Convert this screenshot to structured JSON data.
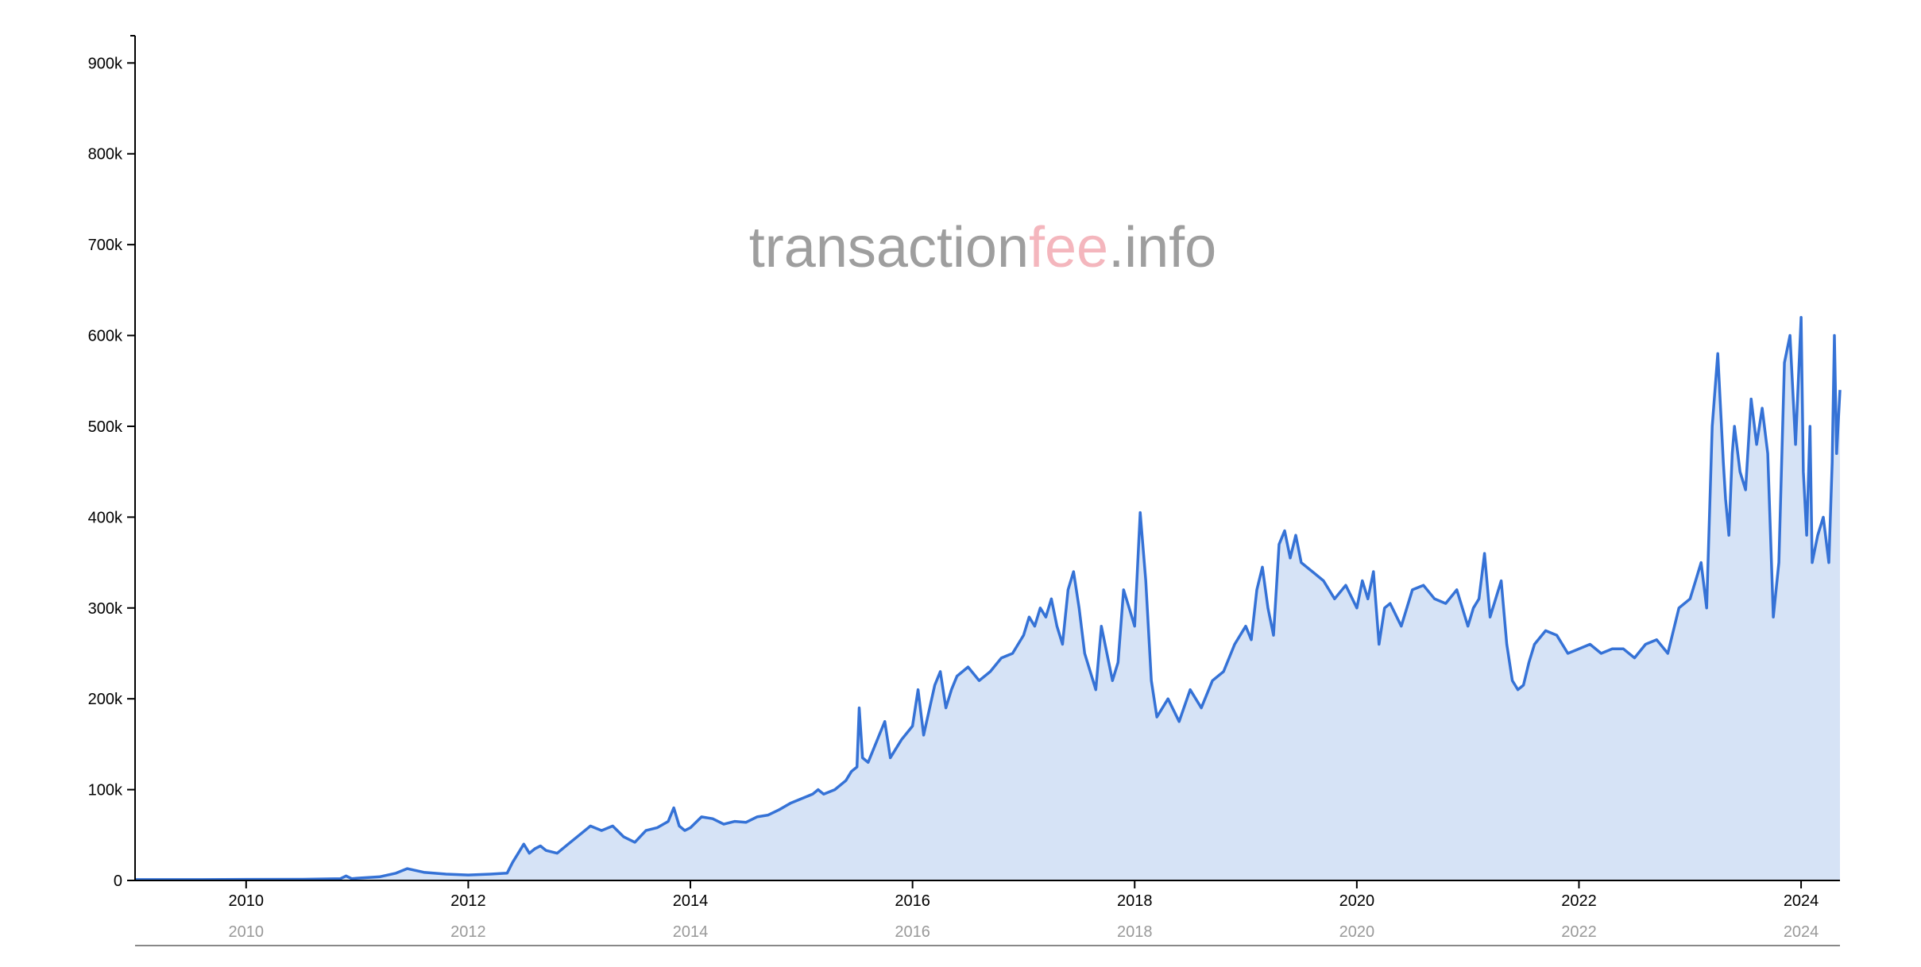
{
  "watermark": {
    "part1": "transaction",
    "part2": "fee",
    "part3": ".info",
    "color_main": "#9e9e9e",
    "color_accent": "#f4b6bd"
  },
  "colors": {
    "line": "#3572d6",
    "area": "#d6e3f6",
    "axis": "#000000",
    "nav_axis": "#888888"
  },
  "chart_data": {
    "type": "area",
    "title": "",
    "xlabel": "",
    "ylabel": "",
    "xlim": [
      2009.0,
      2024.35
    ],
    "ylim": [
      0,
      930000
    ],
    "y_ticks": [
      0,
      100000,
      200000,
      300000,
      400000,
      500000,
      600000,
      700000,
      800000,
      900000
    ],
    "y_tick_labels": [
      "0",
      "100k",
      "200k",
      "300k",
      "400k",
      "500k",
      "600k",
      "700k",
      "800k",
      "900k"
    ],
    "x_ticks": [
      2010,
      2012,
      2014,
      2016,
      2018,
      2020,
      2022,
      2024
    ],
    "x_tick_labels": [
      "2010",
      "2012",
      "2014",
      "2016",
      "2018",
      "2020",
      "2022",
      "2024"
    ],
    "navigator_labels": [
      "2010",
      "2012",
      "2014",
      "2016",
      "2018",
      "2020",
      "2022",
      "2024"
    ],
    "grid": false,
    "series": [
      {
        "x": [
          2009.0,
          2009.5,
          2010.0,
          2010.5,
          2010.85,
          2010.9,
          2010.95,
          2011.0,
          2011.2,
          2011.35,
          2011.45,
          2011.6,
          2011.8,
          2012.0,
          2012.2,
          2012.35,
          2012.4,
          2012.45,
          2012.5,
          2012.55,
          2012.6,
          2012.65,
          2012.7,
          2012.8,
          2012.9,
          2013.0,
          2013.1,
          2013.2,
          2013.3,
          2013.4,
          2013.5,
          2013.6,
          2013.7,
          2013.8,
          2013.85,
          2013.9,
          2013.95,
          2014.0,
          2014.1,
          2014.2,
          2014.3,
          2014.4,
          2014.5,
          2014.6,
          2014.7,
          2014.8,
          2014.9,
          2015.0,
          2015.1,
          2015.15,
          2015.2,
          2015.3,
          2015.4,
          2015.45,
          2015.5,
          2015.52,
          2015.55,
          2015.6,
          2015.7,
          2015.75,
          2015.8,
          2015.85,
          2015.9,
          2016.0,
          2016.05,
          2016.1,
          2016.2,
          2016.25,
          2016.3,
          2016.35,
          2016.4,
          2016.5,
          2016.6,
          2016.7,
          2016.8,
          2016.9,
          2017.0,
          2017.05,
          2017.1,
          2017.15,
          2017.2,
          2017.25,
          2017.3,
          2017.35,
          2017.4,
          2017.45,
          2017.5,
          2017.55,
          2017.6,
          2017.65,
          2017.7,
          2017.75,
          2017.8,
          2017.85,
          2017.9,
          2017.95,
          2018.0,
          2018.05,
          2018.1,
          2018.15,
          2018.2,
          2018.3,
          2018.4,
          2018.5,
          2018.6,
          2018.7,
          2018.8,
          2018.9,
          2019.0,
          2019.05,
          2019.1,
          2019.15,
          2019.2,
          2019.25,
          2019.3,
          2019.35,
          2019.4,
          2019.45,
          2019.5,
          2019.6,
          2019.7,
          2019.8,
          2019.9,
          2020.0,
          2020.05,
          2020.1,
          2020.15,
          2020.2,
          2020.25,
          2020.3,
          2020.4,
          2020.5,
          2020.6,
          2020.7,
          2020.8,
          2020.9,
          2021.0,
          2021.05,
          2021.1,
          2021.15,
          2021.2,
          2021.3,
          2021.35,
          2021.4,
          2021.45,
          2021.5,
          2021.55,
          2021.6,
          2021.7,
          2021.8,
          2021.9,
          2022.0,
          2022.1,
          2022.2,
          2022.3,
          2022.4,
          2022.5,
          2022.6,
          2022.7,
          2022.8,
          2022.9,
          2023.0,
          2023.05,
          2023.1,
          2023.15,
          2023.2,
          2023.25,
          2023.3,
          2023.32,
          2023.35,
          2023.38,
          2023.4,
          2023.45,
          2023.5,
          2023.55,
          2023.6,
          2023.65,
          2023.7,
          2023.75,
          2023.8,
          2023.85,
          2023.9,
          2023.95,
          2024.0,
          2024.02,
          2024.05,
          2024.08,
          2024.1,
          2024.15,
          2024.2,
          2024.25,
          2024.28,
          2024.3,
          2024.32,
          2024.35
        ],
        "y": [
          1000,
          1000,
          1200,
          1300,
          2000,
          5000,
          2000,
          2500,
          4000,
          8000,
          13000,
          9000,
          7000,
          6000,
          7000,
          8000,
          20000,
          30000,
          40000,
          30000,
          35000,
          38000,
          33000,
          30000,
          40000,
          50000,
          60000,
          55000,
          60000,
          48000,
          42000,
          55000,
          58000,
          65000,
          80000,
          60000,
          55000,
          58000,
          70000,
          68000,
          62000,
          65000,
          64000,
          70000,
          72000,
          78000,
          85000,
          90000,
          95000,
          100000,
          95000,
          100000,
          110000,
          120000,
          125000,
          190000,
          135000,
          130000,
          160000,
          175000,
          135000,
          145000,
          155000,
          170000,
          210000,
          160000,
          215000,
          230000,
          190000,
          210000,
          225000,
          235000,
          220000,
          230000,
          245000,
          250000,
          270000,
          290000,
          280000,
          300000,
          290000,
          310000,
          280000,
          260000,
          320000,
          340000,
          300000,
          250000,
          230000,
          210000,
          280000,
          250000,
          220000,
          240000,
          320000,
          300000,
          280000,
          405000,
          330000,
          220000,
          180000,
          200000,
          175000,
          210000,
          190000,
          220000,
          230000,
          260000,
          280000,
          265000,
          320000,
          345000,
          300000,
          270000,
          370000,
          385000,
          355000,
          380000,
          350000,
          340000,
          330000,
          310000,
          325000,
          300000,
          330000,
          310000,
          340000,
          260000,
          300000,
          305000,
          280000,
          320000,
          325000,
          310000,
          305000,
          320000,
          280000,
          300000,
          310000,
          360000,
          290000,
          330000,
          260000,
          220000,
          210000,
          215000,
          240000,
          260000,
          275000,
          270000,
          250000,
          255000,
          260000,
          250000,
          255000,
          255000,
          245000,
          260000,
          265000,
          250000,
          300000,
          310000,
          330000,
          350000,
          300000,
          500000,
          580000,
          460000,
          420000,
          380000,
          470000,
          500000,
          450000,
          430000,
          530000,
          480000,
          520000,
          470000,
          290000,
          350000,
          570000,
          600000,
          480000,
          620000,
          450000,
          380000,
          500000,
          350000,
          380000,
          400000,
          350000,
          460000,
          600000,
          470000,
          540000
        ]
      }
    ]
  }
}
